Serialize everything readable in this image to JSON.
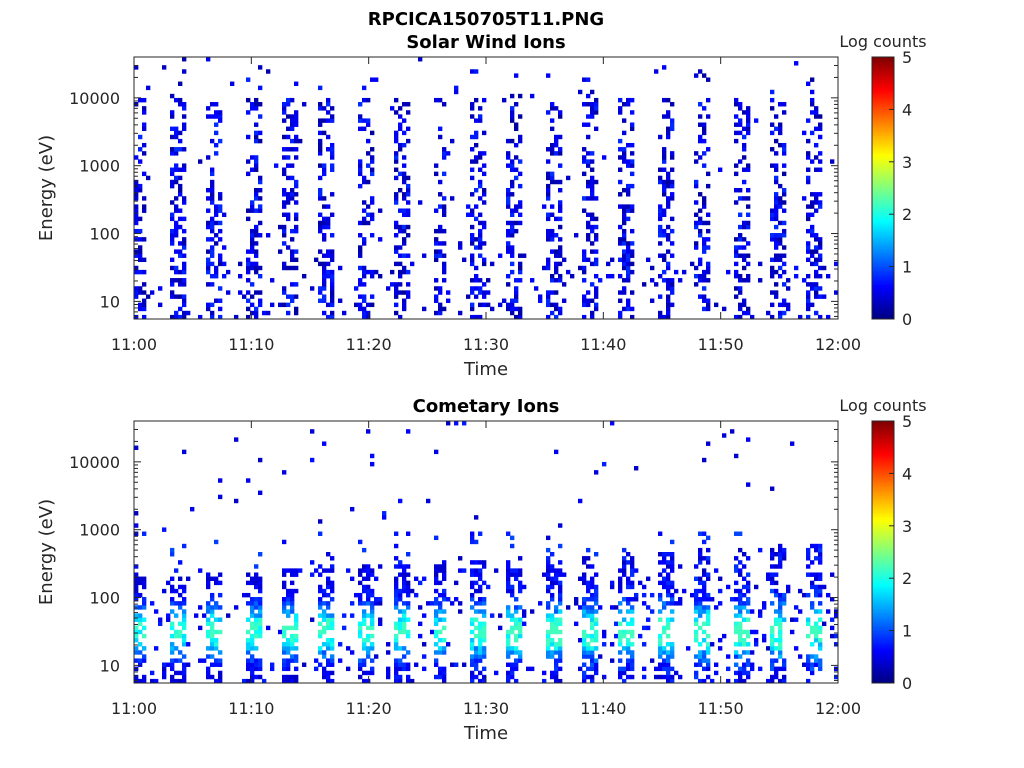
{
  "figure": {
    "filename": "RPCICA150705T11.PNG"
  },
  "chart_data": [
    {
      "type": "heatmap",
      "title": "Solar Wind Ions",
      "xlabel": "Time",
      "ylabel": "Energy (eV)",
      "x_range": [
        "11:00",
        "12:00"
      ],
      "x_ticks": [
        "11:00",
        "11:10",
        "11:20",
        "11:30",
        "11:40",
        "11:50",
        "12:00"
      ],
      "y_scale": "log",
      "y_range": [
        5.5,
        40000
      ],
      "y_ticks": [
        "10",
        "100",
        "1000",
        "10000"
      ],
      "y_tick_values": [
        10,
        100,
        1000,
        10000
      ],
      "colorbar": {
        "label": "Log counts",
        "range": [
          0,
          5
        ],
        "ticks": [
          "0",
          "1",
          "2",
          "3",
          "4",
          "5"
        ],
        "colormap": "jet"
      },
      "description": "Sparse low-count vertical stripes repeating roughly every 3.2 minutes, spanning ~6 eV to ~30000 eV, almost all at 0–1 log counts.",
      "sweep_period_min": 3.2,
      "typical_log_counts": [
        0,
        1
      ],
      "max_energy_ev": 30000
    },
    {
      "type": "heatmap",
      "title": "Cometary Ions",
      "xlabel": "Time",
      "ylabel": "Energy (eV)",
      "x_range": [
        "11:00",
        "12:00"
      ],
      "x_ticks": [
        "11:00",
        "11:10",
        "11:20",
        "11:30",
        "11:40",
        "11:50",
        "12:00"
      ],
      "y_scale": "log",
      "y_range": [
        5.5,
        40000
      ],
      "y_ticks": [
        "10",
        "100",
        "1000",
        "10000"
      ],
      "y_tick_values": [
        10,
        100,
        1000,
        10000
      ],
      "colorbar": {
        "label": "Log counts",
        "range": [
          0,
          5
        ],
        "ticks": [
          "0",
          "1",
          "2",
          "3",
          "4",
          "5"
        ],
        "colormap": "jet"
      },
      "description": "Dense signal below ~500 eV in stripes repeating every ~3.2 minutes; peak intensity ~1.5–2 log counts near 20–50 eV; sparse points up to ~10000 eV.",
      "sweep_period_min": 3.2,
      "peak_log_counts": 2.1,
      "peak_energy_ev": [
        20,
        50
      ],
      "dense_max_energy_ev": 500
    }
  ]
}
